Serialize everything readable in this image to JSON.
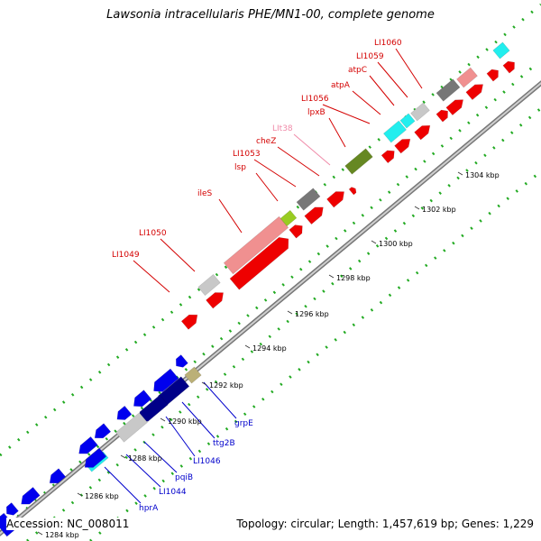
{
  "title": "Lawsonia intracellularis PHE/MN1-00, complete genome",
  "footer": {
    "accession": "Accession: NC_008011",
    "summary": "Topology: circular; Length: 1,457,619 bp; Genes: 1,229"
  },
  "ticks": [
    "1284 kbp",
    "1286 kbp",
    "1288 kbp",
    "1290 kbp",
    "1292 kbp",
    "1294 kbp",
    "1296 kbp",
    "1298 kbp",
    "1300 kbp",
    "1302 kbp",
    "1304 kbp"
  ],
  "gene_labels_top": [
    {
      "text": "LI1060",
      "color": "#d40000"
    },
    {
      "text": "LI1059",
      "color": "#d40000"
    },
    {
      "text": "atpC",
      "color": "#d40000"
    },
    {
      "text": "atpA",
      "color": "#d40000"
    },
    {
      "text": "LI1056",
      "color": "#d40000"
    },
    {
      "text": "lpxB",
      "color": "#d40000"
    },
    {
      "text": "LIt38",
      "color": "#f08aa8"
    },
    {
      "text": "cheZ",
      "color": "#d40000"
    },
    {
      "text": "LI1053",
      "color": "#d40000"
    },
    {
      "text": "lsp",
      "color": "#d40000"
    },
    {
      "text": "ileS",
      "color": "#d40000"
    },
    {
      "text": "LI1050",
      "color": "#d40000"
    },
    {
      "text": "LI1049",
      "color": "#d40000"
    }
  ],
  "gene_labels_bottom": [
    {
      "text": "grpE",
      "color": "#0000cc"
    },
    {
      "text": "ttg2B",
      "color": "#0000cc"
    },
    {
      "text": "LI1046",
      "color": "#0000cc"
    },
    {
      "text": "pqiB",
      "color": "#0000cc"
    },
    {
      "text": "LI1044",
      "color": "#0000cc"
    },
    {
      "text": "hprA",
      "color": "#0000cc"
    }
  ],
  "colors": {
    "forward_strand": "#ee0000",
    "reverse_strand": "#0000ee",
    "backbone": "#999999",
    "tick_dots": "#22aa22"
  }
}
